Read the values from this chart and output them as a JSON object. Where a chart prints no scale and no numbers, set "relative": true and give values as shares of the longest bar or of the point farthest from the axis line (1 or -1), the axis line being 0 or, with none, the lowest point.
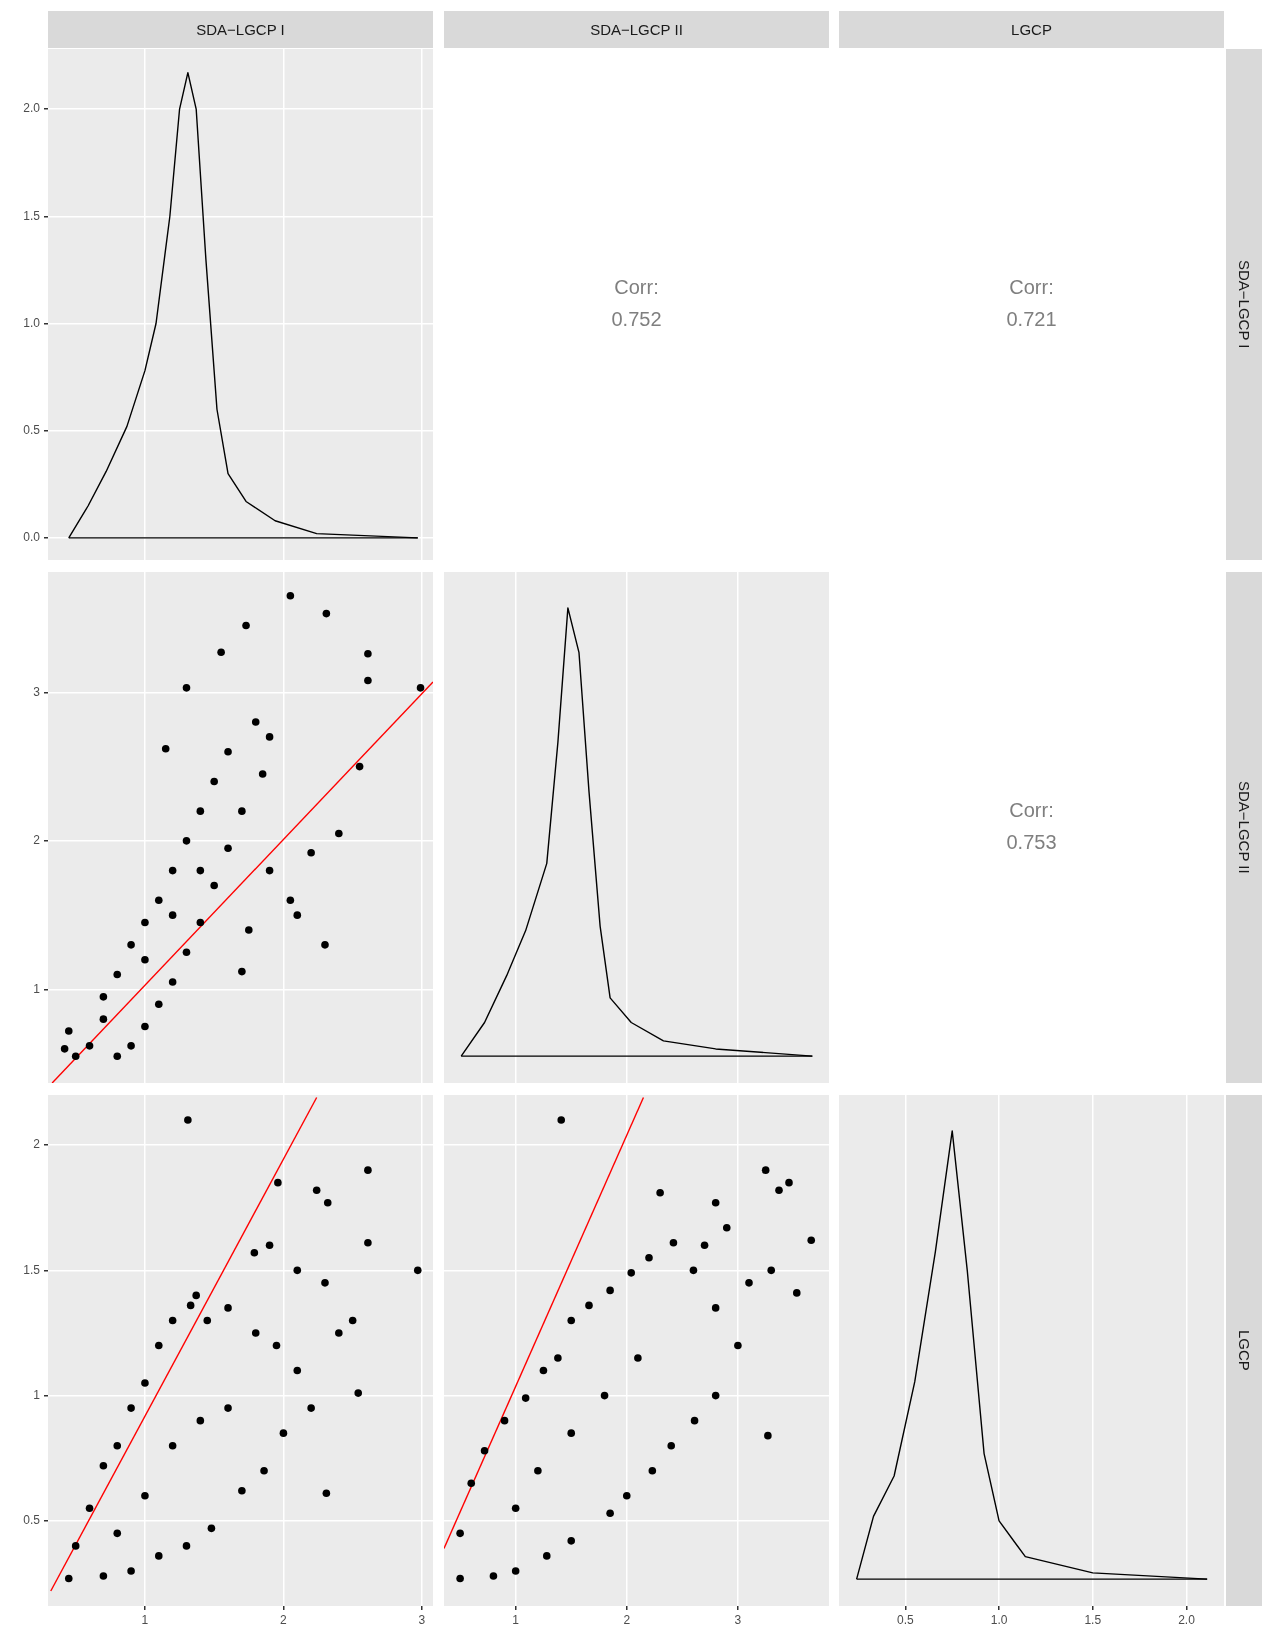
{
  "chart_data": [
    {
      "type": "line",
      "title": "SDA−LGCP I",
      "x": [
        0.45,
        0.59,
        0.72,
        0.87,
        1.0,
        1.08,
        1.18,
        1.25,
        1.31,
        1.37,
        1.44,
        1.52,
        1.6,
        1.73,
        1.94,
        2.24,
        2.97
      ],
      "values": [
        0,
        0.15,
        0.31,
        0.52,
        0.78,
        1.0,
        1.5,
        2.0,
        2.17,
        2.0,
        1.3,
        0.6,
        0.3,
        0.17,
        0.08,
        0.02,
        0
      ],
      "color": "#000000",
      "xlim": [
        0.3,
        3.08
      ],
      "xticks": [
        1,
        2,
        3
      ],
      "ylim": [
        -0.103,
        2.28
      ],
      "yticks": [
        {
          "value": 0,
          "label": "0.0"
        },
        {
          "value": 0.5,
          "label": "0.5"
        },
        {
          "value": 1,
          "label": "1.0"
        },
        {
          "value": 1.5,
          "label": "1.5"
        },
        {
          "value": 2,
          "label": "2.0"
        }
      ],
      "tick_labels": "y",
      "grid": true
    },
    {
      "type": "other",
      "title": "SDA−LGCP II",
      "annotations": [
        "Corr:",
        "0.752"
      ]
    },
    {
      "type": "other",
      "title": "LGCP",
      "y2label": "SDA−LGCP I",
      "annotations": [
        "Corr:",
        "0.721"
      ]
    },
    {
      "type": "scatter",
      "xlim": [
        0.3,
        3.08
      ],
      "xticks": [
        1,
        2,
        3
      ],
      "ylim": [
        0.37,
        3.81
      ],
      "yticks": [
        1,
        2,
        3
      ],
      "tick_labels": "y",
      "grid": true,
      "series": [
        {
          "type": "scatter",
          "marker": "circle",
          "color": "#000000",
          "x": [
            0.42,
            0.45,
            0.5,
            0.6,
            0.7,
            0.8,
            0.9,
            1.0,
            1.1,
            1.2,
            1.3,
            1.4,
            1.5,
            1.6,
            1.8,
            1.9,
            1.85,
            1.7,
            1.6,
            1.5,
            1.4,
            1.3,
            1.2,
            1.1,
            1.0,
            0.9,
            0.8,
            1.15,
            1.3,
            1.55,
            1.73,
            2.05,
            2.31,
            2.61,
            2.61,
            2.99,
            2.55,
            2.4,
            2.2,
            2.05,
            1.9,
            1.75,
            1.7,
            2.1,
            2.3,
            1.0,
            1.2,
            1.4,
            0.7
          ],
          "values": [
            0.6,
            0.72,
            0.55,
            0.62,
            0.95,
            1.1,
            1.3,
            1.45,
            1.6,
            1.8,
            2.0,
            2.2,
            2.4,
            2.6,
            2.8,
            2.7,
            2.45,
            2.2,
            1.95,
            1.7,
            1.45,
            1.25,
            1.05,
            0.9,
            0.75,
            0.62,
            0.55,
            2.62,
            3.03,
            3.27,
            3.45,
            3.65,
            3.53,
            3.26,
            3.08,
            3.03,
            2.5,
            2.05,
            1.92,
            1.6,
            1.8,
            1.4,
            1.12,
            1.5,
            1.3,
            1.2,
            1.5,
            1.8,
            0.8
          ]
        },
        {
          "type": "line",
          "marker": "none",
          "color": "#ff0000",
          "x": [
            0.33,
            3.08
          ],
          "values": [
            0.37,
            3.07
          ]
        }
      ]
    },
    {
      "type": "line",
      "relative": true,
      "x": [
        0.51,
        0.72,
        0.92,
        1.09,
        1.28,
        1.38,
        1.47,
        1.57,
        1.66,
        1.76,
        1.85,
        2.04,
        2.33,
        2.8,
        3.67
      ],
      "values": [
        0,
        0.075,
        0.18,
        0.28,
        0.43,
        0.7,
        1,
        0.9,
        0.59,
        0.29,
        0.13,
        0.075,
        0.034,
        0.016,
        0
      ],
      "color": "#000000",
      "xlim": [
        0.355,
        3.82
      ],
      "xticks": [
        1,
        2,
        3
      ],
      "tick_labels": false,
      "grid": true
    },
    {
      "type": "other",
      "y2label": "SDA−LGCP II",
      "annotations": [
        "Corr:",
        "0.753"
      ]
    },
    {
      "type": "scatter",
      "xlim": [
        0.3,
        3.08
      ],
      "xticks": [
        1,
        2,
        3
      ],
      "ylim": [
        0.16,
        2.2
      ],
      "yticks": [
        0.5,
        1,
        1.5,
        2
      ],
      "grid": true,
      "series": [
        {
          "type": "scatter",
          "marker": "circle",
          "color": "#000000",
          "x": [
            0.45,
            0.5,
            0.6,
            0.7,
            0.8,
            0.9,
            1.0,
            1.1,
            1.2,
            1.33,
            1.45,
            1.6,
            1.8,
            1.95,
            2.1,
            2.2,
            2.0,
            1.86,
            1.7,
            1.48,
            1.3,
            1.1,
            0.9,
            0.7,
            1.0,
            1.2,
            1.4,
            1.6,
            0.8,
            1.31,
            2.61,
            1.96,
            2.24,
            2.32,
            2.97,
            2.61,
            2.54,
            2.31,
            1.79,
            1.37,
            2.4,
            2.3,
            2.5,
            1.9,
            2.1
          ],
          "values": [
            0.27,
            0.4,
            0.55,
            0.72,
            0.8,
            0.95,
            1.05,
            1.2,
            1.3,
            1.36,
            1.3,
            1.35,
            1.25,
            1.2,
            1.1,
            0.95,
            0.85,
            0.7,
            0.62,
            0.47,
            0.4,
            0.36,
            0.3,
            0.28,
            0.6,
            0.8,
            0.9,
            0.95,
            0.45,
            2.1,
            1.9,
            1.85,
            1.82,
            1.77,
            1.5,
            1.61,
            1.01,
            0.61,
            1.57,
            1.4,
            1.25,
            1.45,
            1.3,
            1.6,
            1.5
          ]
        },
        {
          "type": "line",
          "marker": "none",
          "color": "#ff0000",
          "x": [
            0.32,
            2.24
          ],
          "values": [
            0.22,
            2.19
          ]
        }
      ]
    },
    {
      "type": "scatter",
      "xlim": [
        0.355,
        3.82
      ],
      "xticks": [
        1,
        2,
        3
      ],
      "ylim": [
        0.16,
        2.2
      ],
      "yticks": [
        0.5,
        1,
        1.5,
        2
      ],
      "tick_labels": "x",
      "grid": true,
      "series": [
        {
          "type": "scatter",
          "marker": "circle",
          "color": "#000000",
          "x": [
            0.5,
            0.5,
            0.6,
            0.72,
            0.9,
            1.09,
            1.25,
            1.38,
            1.5,
            1.66,
            1.85,
            2.04,
            2.2,
            2.42,
            2.6,
            2.8,
            3.0,
            2.8,
            2.61,
            2.4,
            2.23,
            2.0,
            1.85,
            1.5,
            1.28,
            1.0,
            0.8,
            1.2,
            1.5,
            1.8,
            2.1,
            1.0,
            1.41,
            3.25,
            3.46,
            3.37,
            3.66,
            2.8,
            2.3,
            3.27,
            3.53,
            2.9,
            3.1,
            3.3,
            2.7
          ],
          "values": [
            0.27,
            0.45,
            0.65,
            0.78,
            0.9,
            0.99,
            1.1,
            1.15,
            1.3,
            1.36,
            1.42,
            1.49,
            1.55,
            1.61,
            1.5,
            1.35,
            1.2,
            1.0,
            0.9,
            0.8,
            0.7,
            0.6,
            0.53,
            0.42,
            0.36,
            0.3,
            0.28,
            0.7,
            0.85,
            1.0,
            1.15,
            0.55,
            2.1,
            1.9,
            1.85,
            1.82,
            1.62,
            1.77,
            1.81,
            0.84,
            1.41,
            1.67,
            1.45,
            1.5,
            1.6
          ]
        },
        {
          "type": "line",
          "marker": "none",
          "color": "#ff0000",
          "x": [
            0.355,
            2.15
          ],
          "values": [
            0.39,
            2.19
          ]
        }
      ]
    },
    {
      "type": "line",
      "relative": true,
      "y2label": "LGCP",
      "x": [
        0.24,
        0.33,
        0.44,
        0.55,
        0.66,
        0.75,
        0.83,
        0.92,
        1.0,
        1.14,
        1.5,
        2.11
      ],
      "values": [
        0,
        0.14,
        0.23,
        0.44,
        0.73,
        1,
        0.69,
        0.28,
        0.13,
        0.05,
        0.014,
        0
      ],
      "color": "#000000",
      "xlim": [
        0.146,
        2.2
      ],
      "xticks": [
        {
          "value": 0.5,
          "label": "0.5"
        },
        {
          "value": 1,
          "label": "1.0"
        },
        {
          "value": 1.5,
          "label": "1.5"
        },
        {
          "value": 2,
          "label": "2.0"
        }
      ],
      "tick_labels": "x",
      "grid": true
    }
  ]
}
